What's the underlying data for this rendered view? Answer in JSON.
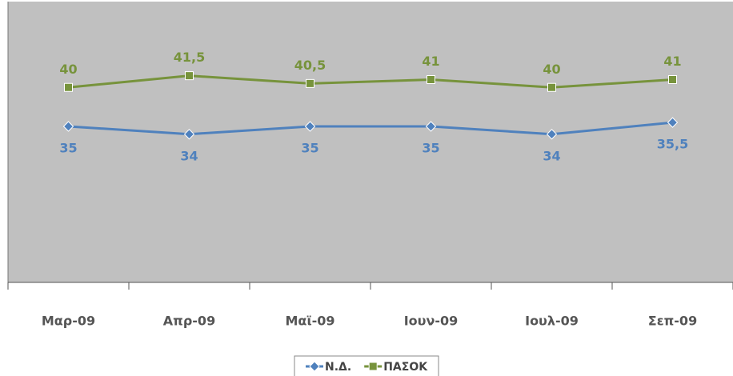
{
  "chart_data": {
    "type": "line",
    "categories": [
      "Μαρ-09",
      "Απρ-09",
      "Μαϊ-09",
      "Ιουν-09",
      "Ιουλ-09",
      "Σεπ-09"
    ],
    "series": [
      {
        "name": "Ν.Δ.",
        "color": "#4f81bd",
        "marker": "diamond",
        "values": [
          35,
          34,
          35,
          35,
          34,
          35.5
        ],
        "value_labels": [
          "35",
          "34",
          "35",
          "35",
          "34",
          "35,5"
        ]
      },
      {
        "name": "ΠΑΣΟΚ",
        "color": "#77933c",
        "marker": "square",
        "values": [
          40,
          41.5,
          40.5,
          41,
          40,
          41
        ],
        "value_labels": [
          "40",
          "41,5",
          "40,5",
          "41",
          "40",
          "41"
        ]
      }
    ],
    "ylim": [
      15,
      51
    ],
    "legend": "bottom"
  }
}
